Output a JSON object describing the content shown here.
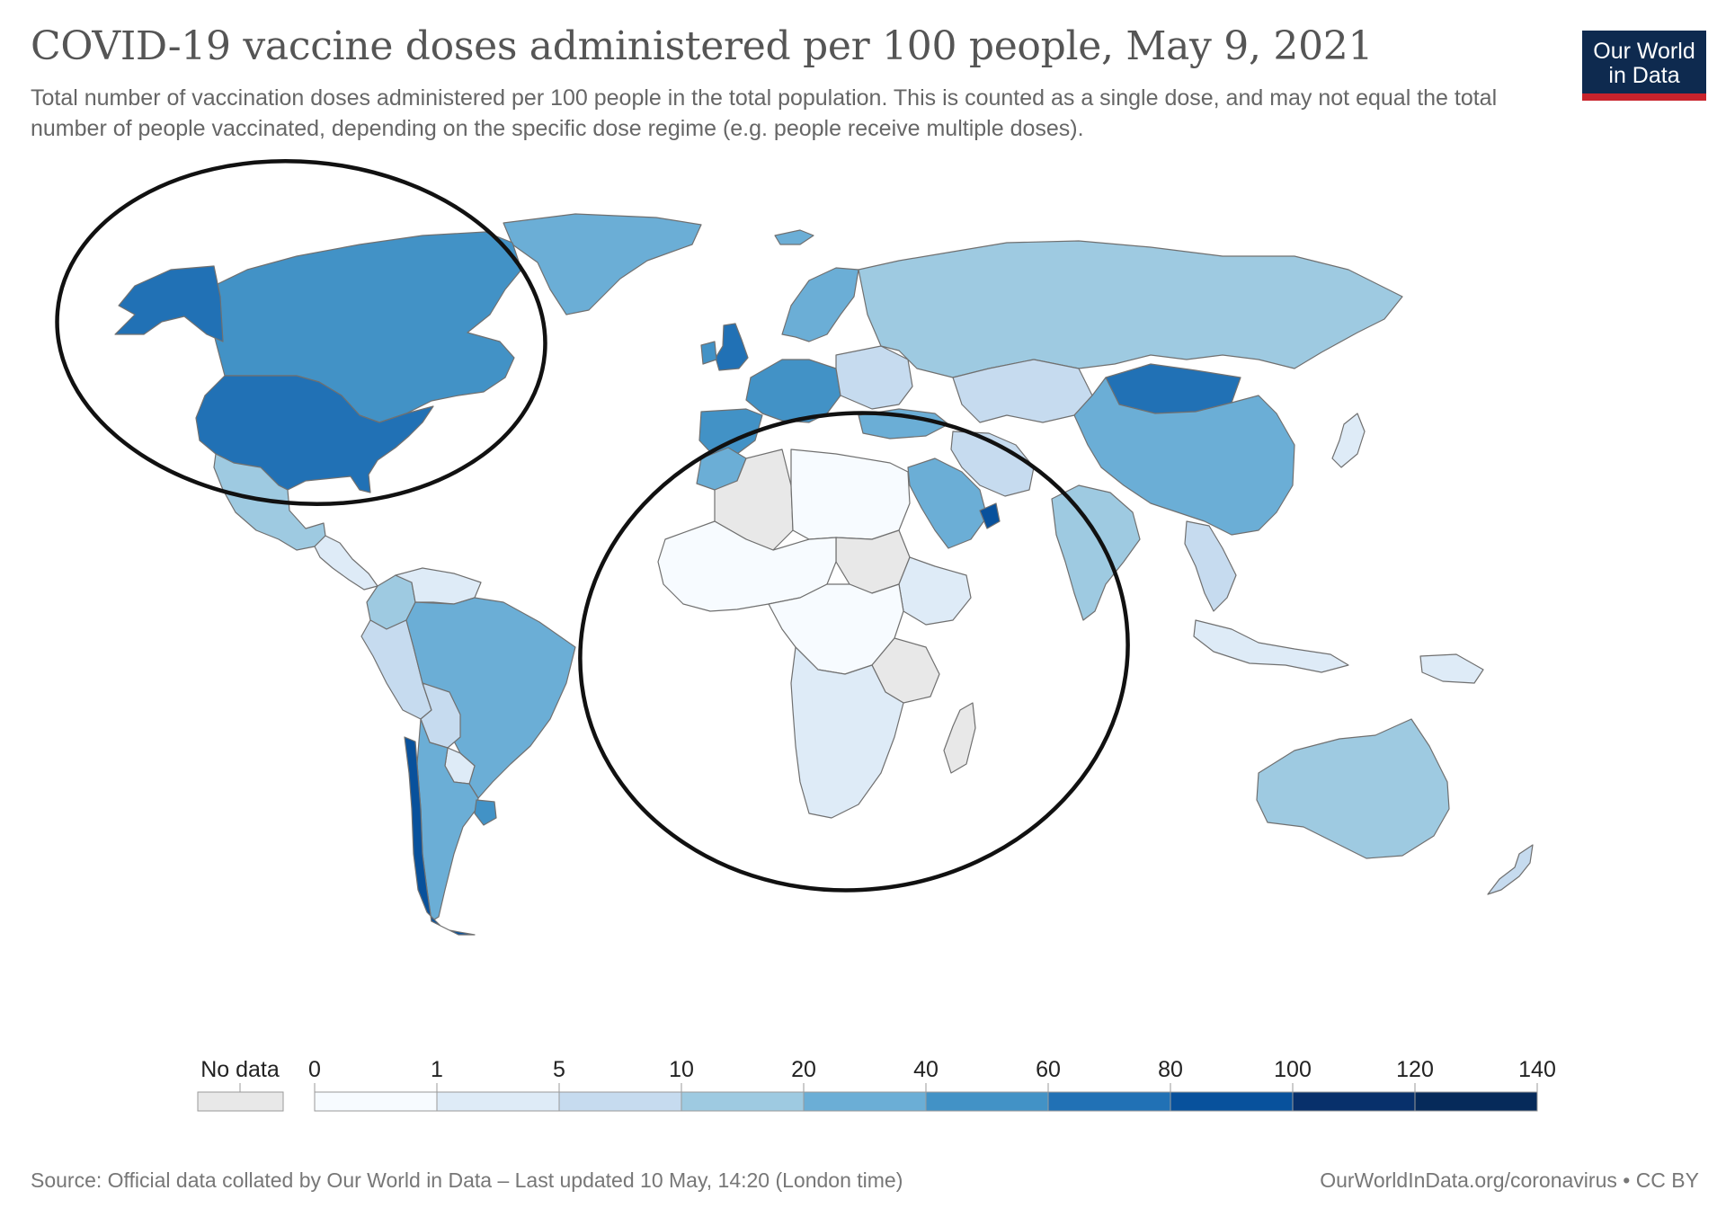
{
  "header": {
    "title": "COVID-19 vaccine doses administered per 100 people, May 9, 2021",
    "subtitle": "Total number of vaccination doses administered per 100 people in the total population. This is counted as a single dose, and may not equal the total number of people vaccinated, depending on the specific dose regime (e.g. people receive multiple doses).",
    "logo_line1": "Our World",
    "logo_line2": "in Data"
  },
  "colors": {
    "no_data": "#e8e8e8",
    "scale": [
      "#f7fbff",
      "#deebf7",
      "#c6dbef",
      "#9ecae1",
      "#6baed6",
      "#4292c6",
      "#2171b5",
      "#08519c",
      "#08306b",
      "#062a5a"
    ],
    "border": "#707070",
    "annotation": "#111111"
  },
  "legend": {
    "no_data_label": "No data",
    "ticks": [
      "0",
      "1",
      "5",
      "10",
      "20",
      "40",
      "60",
      "80",
      "100",
      "120",
      "140"
    ]
  },
  "footer": {
    "source": "Source: Official data collated by Our World in Data – Last updated 10 May, 14:20 (London time)",
    "credit": "OurWorldInData.org/coronavirus • CC BY"
  },
  "regions": [
    {
      "name": "Greenland",
      "bin": 4
    },
    {
      "name": "Canada",
      "bin": 5
    },
    {
      "name": "Alaska",
      "bin": 6
    },
    {
      "name": "United States",
      "bin": 6
    },
    {
      "name": "Mexico",
      "bin": 3
    },
    {
      "name": "Central America",
      "bin": 1
    },
    {
      "name": "Colombia",
      "bin": 3
    },
    {
      "name": "Venezuela",
      "bin": 1
    },
    {
      "name": "Peru",
      "bin": 2
    },
    {
      "name": "Brazil",
      "bin": 4
    },
    {
      "name": "Bolivia",
      "bin": 2
    },
    {
      "name": "Paraguay",
      "bin": 1
    },
    {
      "name": "Argentina",
      "bin": 4
    },
    {
      "name": "Chile",
      "bin": 7
    },
    {
      "name": "Uruguay",
      "bin": 5
    },
    {
      "name": "Iceland",
      "bin": 4
    },
    {
      "name": "United Kingdom",
      "bin": 6
    },
    {
      "name": "Ireland",
      "bin": 5
    },
    {
      "name": "Scandinavia",
      "bin": 4
    },
    {
      "name": "Western Europe",
      "bin": 5
    },
    {
      "name": "Eastern Europe",
      "bin": 2
    },
    {
      "name": "Iberia",
      "bin": 5
    },
    {
      "name": "Russia",
      "bin": 3
    },
    {
      "name": "Turkey",
      "bin": 4
    },
    {
      "name": "Kazakhstan",
      "bin": 2
    },
    {
      "name": "Mongolia",
      "bin": 6
    },
    {
      "name": "China",
      "bin": 4
    },
    {
      "name": "India",
      "bin": 3
    },
    {
      "name": "Saudi Arabia",
      "bin": 4
    },
    {
      "name": "United Arab Emirates",
      "bin": 7
    },
    {
      "name": "Iran",
      "bin": 2
    },
    {
      "name": "Japan",
      "bin": 1
    },
    {
      "name": "Morocco",
      "bin": 4
    },
    {
      "name": "Algeria",
      "bin": -1
    },
    {
      "name": "North Africa",
      "bin": 0
    },
    {
      "name": "Sudan",
      "bin": -1
    },
    {
      "name": "West Africa",
      "bin": 0
    },
    {
      "name": "Ethiopia",
      "bin": 1
    },
    {
      "name": "Central Africa",
      "bin": 0
    },
    {
      "name": "Tanzania",
      "bin": -1
    },
    {
      "name": "Southern Africa",
      "bin": 1
    },
    {
      "name": "Madagascar",
      "bin": -1
    },
    {
      "name": "Southeast Asia",
      "bin": 2
    },
    {
      "name": "Indonesia",
      "bin": 1
    },
    {
      "name": "Papua New Guinea",
      "bin": 1
    },
    {
      "name": "Australia",
      "bin": 3
    },
    {
      "name": "New Zealand",
      "bin": 2
    }
  ]
}
